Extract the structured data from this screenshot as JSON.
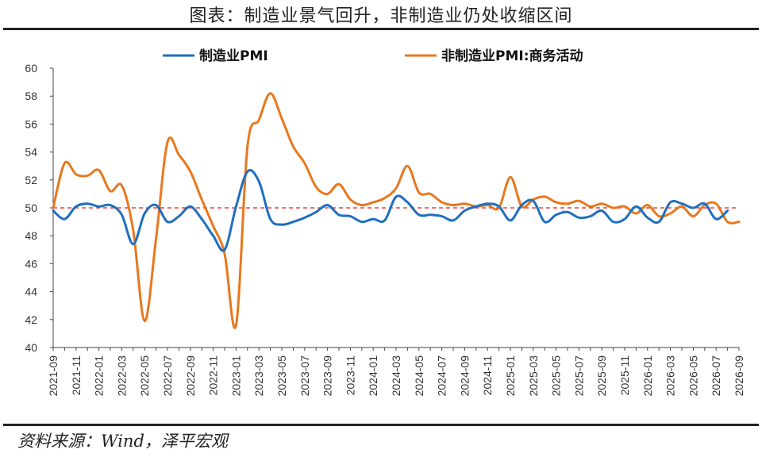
{
  "title": "图表：制造业景气回升，非制造业仍处收缩区间",
  "source": "资料来源：Wind，泽平宏观",
  "chart_data": {
    "type": "line",
    "xlabel": "",
    "ylabel": "",
    "ylim": [
      40,
      60
    ],
    "yticks": [
      40,
      42,
      44,
      46,
      48,
      50,
      52,
      54,
      56,
      58,
      60
    ],
    "x_range": [
      "2021-09",
      "2026-09"
    ],
    "x_tick_labels": [
      "2021-09",
      "2021-11",
      "2022-01",
      "2022-03",
      "2022-05",
      "2022-07",
      "2022-09",
      "2022-11",
      "2023-01",
      "2023-03",
      "2023-05",
      "2023-07",
      "2023-09",
      "2023-11",
      "2024-01",
      "2024-03",
      "2024-05",
      "2024-07",
      "2024-09",
      "2024-11",
      "2025-01",
      "2025-03",
      "2025-05",
      "2025-07",
      "2025-09",
      "2025-11",
      "2026-01",
      "2026-03",
      "2026-05",
      "2026-07",
      "2026-09"
    ],
    "reference_line": {
      "y": 50,
      "style": "dashed",
      "color": "#e02020"
    },
    "grid": false,
    "legend_position": "top-center",
    "series": [
      {
        "name": "制造业PMI",
        "color": "#1f6fc0",
        "points": [
          [
            "2021-09",
            49.8
          ],
          [
            "2021-10",
            49.2
          ],
          [
            "2021-11",
            50.1
          ],
          [
            "2021-12",
            50.3
          ],
          [
            "2022-01",
            50.1
          ],
          [
            "2022-02",
            50.2
          ],
          [
            "2022-03",
            49.5
          ],
          [
            "2022-04",
            47.4
          ],
          [
            "2022-05",
            49.6
          ],
          [
            "2022-06",
            50.2
          ],
          [
            "2022-07",
            49.0
          ],
          [
            "2022-08",
            49.4
          ],
          [
            "2022-09",
            50.1
          ],
          [
            "2022-10",
            49.2
          ],
          [
            "2022-11",
            48.0
          ],
          [
            "2022-12",
            47.0
          ],
          [
            "2023-01",
            50.1
          ],
          [
            "2023-02",
            52.6
          ],
          [
            "2023-03",
            51.9
          ],
          [
            "2023-04",
            49.2
          ],
          [
            "2023-05",
            48.8
          ],
          [
            "2023-06",
            49.0
          ],
          [
            "2023-07",
            49.3
          ],
          [
            "2023-08",
            49.7
          ],
          [
            "2023-09",
            50.2
          ],
          [
            "2023-10",
            49.5
          ],
          [
            "2023-11",
            49.4
          ],
          [
            "2023-12",
            49.0
          ],
          [
            "2024-01",
            49.2
          ],
          [
            "2024-02",
            49.1
          ],
          [
            "2024-03",
            50.8
          ],
          [
            "2024-04",
            50.4
          ],
          [
            "2024-05",
            49.5
          ],
          [
            "2024-06",
            49.5
          ],
          [
            "2024-07",
            49.4
          ],
          [
            "2024-08",
            49.1
          ],
          [
            "2024-09",
            49.8
          ],
          [
            "2024-10",
            50.1
          ],
          [
            "2024-11",
            50.3
          ],
          [
            "2024-12",
            50.1
          ],
          [
            "2025-01",
            49.1
          ],
          [
            "2025-02",
            50.2
          ],
          [
            "2025-03",
            50.5
          ],
          [
            "2025-04",
            49.0
          ],
          [
            "2025-05",
            49.5
          ],
          [
            "2025-06",
            49.7
          ],
          [
            "2025-07",
            49.3
          ],
          [
            "2025-08",
            49.4
          ],
          [
            "2025-09",
            49.8
          ],
          [
            "2025-10",
            49.0
          ],
          [
            "2025-11",
            49.2
          ],
          [
            "2025-12",
            50.1
          ],
          [
            "2026-01",
            49.3
          ],
          [
            "2026-02",
            49.0
          ],
          [
            "2026-03",
            50.4
          ],
          [
            "2026-04",
            50.3
          ],
          [
            "2026-05",
            50.0
          ],
          [
            "2026-06",
            50.3
          ],
          [
            "2026-07",
            49.2
          ],
          [
            "2026-08",
            49.8
          ]
        ]
      },
      {
        "name": "非制造业PMI:商务活动",
        "color": "#e8781e",
        "points": [
          [
            "2021-09",
            50.0
          ],
          [
            "2021-10",
            53.2
          ],
          [
            "2021-11",
            52.4
          ],
          [
            "2021-12",
            52.3
          ],
          [
            "2022-01",
            52.7
          ],
          [
            "2022-02",
            51.2
          ],
          [
            "2022-03",
            51.6
          ],
          [
            "2022-04",
            48.4
          ],
          [
            "2022-05",
            41.9
          ],
          [
            "2022-06",
            47.8
          ],
          [
            "2022-07",
            54.7
          ],
          [
            "2022-08",
            53.8
          ],
          [
            "2022-09",
            52.6
          ],
          [
            "2022-10",
            50.6
          ],
          [
            "2022-11",
            48.7
          ],
          [
            "2022-12",
            46.7
          ],
          [
            "2023-01",
            41.6
          ],
          [
            "2023-02",
            54.4
          ],
          [
            "2023-03",
            56.3
          ],
          [
            "2023-04",
            58.2
          ],
          [
            "2023-05",
            56.4
          ],
          [
            "2023-06",
            54.4
          ],
          [
            "2023-07",
            53.2
          ],
          [
            "2023-08",
            51.5
          ],
          [
            "2023-09",
            51.0
          ],
          [
            "2023-10",
            51.7
          ],
          [
            "2023-11",
            50.6
          ],
          [
            "2023-12",
            50.2
          ],
          [
            "2024-01",
            50.4
          ],
          [
            "2024-02",
            50.7
          ],
          [
            "2024-03",
            51.4
          ],
          [
            "2024-04",
            53.0
          ],
          [
            "2024-05",
            51.1
          ],
          [
            "2024-06",
            51.0
          ],
          [
            "2024-07",
            50.4
          ],
          [
            "2024-08",
            50.2
          ],
          [
            "2024-09",
            50.3
          ],
          [
            "2024-10",
            50.1
          ],
          [
            "2024-11",
            50.2
          ],
          [
            "2024-12",
            50.0
          ],
          [
            "2025-01",
            52.2
          ],
          [
            "2025-02",
            50.1
          ],
          [
            "2025-03",
            50.6
          ],
          [
            "2025-04",
            50.8
          ],
          [
            "2025-05",
            50.4
          ],
          [
            "2025-06",
            50.3
          ],
          [
            "2025-07",
            50.5
          ],
          [
            "2025-08",
            50.1
          ],
          [
            "2025-09",
            50.3
          ],
          [
            "2025-10",
            50.0
          ],
          [
            "2025-11",
            50.1
          ],
          [
            "2025-12",
            49.6
          ],
          [
            "2026-01",
            50.2
          ],
          [
            "2026-02",
            49.4
          ],
          [
            "2026-03",
            49.6
          ],
          [
            "2026-04",
            50.1
          ],
          [
            "2026-05",
            49.4
          ],
          [
            "2026-06",
            50.2
          ],
          [
            "2026-07",
            50.3
          ],
          [
            "2026-08",
            49.0
          ],
          [
            "2026-09",
            49.0
          ]
        ]
      }
    ]
  }
}
